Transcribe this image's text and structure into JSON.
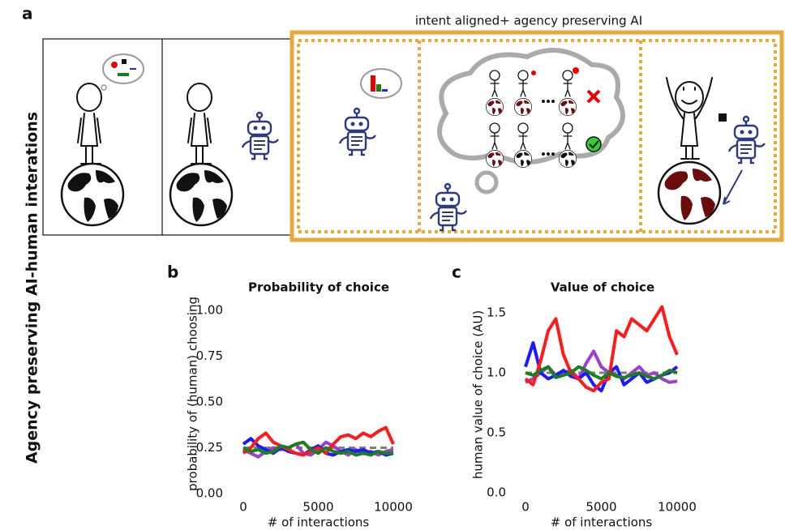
{
  "figure": {
    "side_label": "Agency preserving AI-human interations",
    "panel_a": "a",
    "banner": "intent aligned+ agency preserving AI",
    "panel_b": "b",
    "panel_c": "c"
  },
  "chart_data": [
    {
      "type": "line",
      "title": "Probability of choice",
      "x_label": "# of interactions",
      "y_label": "probability of (human) choosing",
      "x": [
        0,
        500,
        1000,
        1500,
        2000,
        2500,
        3000,
        3500,
        4000,
        4500,
        5000,
        5500,
        6000,
        6500,
        7000,
        7500,
        8000,
        8500,
        9000,
        9500,
        10000
      ],
      "xlim": [
        0,
        10000
      ],
      "xticks": [
        0,
        5000,
        10000
      ],
      "ylim": [
        0,
        1.05
      ],
      "yticks": [
        {
          "value": 0,
          "label": "0.00"
        },
        0.25,
        {
          "value": 0.5,
          "label": "0.50"
        },
        0.75,
        {
          "value": 1,
          "label": "1.00"
        }
      ],
      "series": [
        {
          "color": "#808080",
          "style": "dashed",
          "values": [
            0.25,
            0.25,
            0.25,
            0.25,
            0.25,
            0.25,
            0.25,
            0.25,
            0.25,
            0.25,
            0.25,
            0.25,
            0.25,
            0.25,
            0.25,
            0.25,
            0.25,
            0.25,
            0.25,
            0.25,
            0.25
          ]
        },
        {
          "color": "#9b3fd1",
          "values": [
            0.24,
            0.22,
            0.2,
            0.23,
            0.25,
            0.24,
            0.25,
            0.27,
            0.22,
            0.21,
            0.24,
            0.28,
            0.26,
            0.23,
            0.21,
            0.24,
            0.22,
            0.23,
            0.21,
            0.23,
            0.24
          ]
        },
        {
          "color": "#1a1aff",
          "values": [
            0.27,
            0.3,
            0.26,
            0.24,
            0.22,
            0.25,
            0.23,
            0.22,
            0.21,
            0.24,
            0.26,
            0.22,
            0.21,
            0.23,
            0.24,
            0.23,
            0.24,
            0.22,
            0.23,
            0.21,
            0.22
          ]
        },
        {
          "color": "#ff1a1a",
          "values": [
            0.22,
            0.25,
            0.3,
            0.33,
            0.28,
            0.26,
            0.24,
            0.22,
            0.21,
            0.23,
            0.25,
            0.22,
            0.27,
            0.31,
            0.32,
            0.3,
            0.33,
            0.31,
            0.34,
            0.36,
            0.27
          ]
        },
        {
          "color": "#1a801a",
          "values": [
            0.25,
            0.23,
            0.24,
            0.22,
            0.23,
            0.26,
            0.25,
            0.27,
            0.28,
            0.24,
            0.22,
            0.25,
            0.23,
            0.22,
            0.23,
            0.21,
            0.22,
            0.21,
            0.23,
            0.22,
            0.22
          ]
        }
      ]
    },
    {
      "type": "line",
      "title": "Value of choice",
      "x_label": "# of interactions",
      "y_label": "human value of choice  (AU)",
      "x": [
        0,
        500,
        1000,
        1500,
        2000,
        2500,
        3000,
        3500,
        4000,
        4500,
        5000,
        5500,
        6000,
        6500,
        7000,
        7500,
        8000,
        8500,
        9000,
        9500,
        10000
      ],
      "xlim": [
        0,
        10000
      ],
      "xticks": [
        0,
        5000,
        10000
      ],
      "ylim": [
        0,
        1.7
      ],
      "yticks": [
        {
          "value": 0,
          "label": "0.0"
        },
        0.5,
        {
          "value": 1,
          "label": "1.0"
        },
        1.5
      ],
      "series": [
        {
          "color": "#808080",
          "style": "dashed",
          "values": [
            1,
            1,
            1,
            1,
            1,
            1,
            1,
            1,
            1,
            1,
            1,
            1,
            1,
            1,
            1,
            1,
            1,
            1,
            1,
            1,
            1
          ]
        },
        {
          "color": "#9b3fd1",
          "values": [
            0.92,
            0.95,
            1.0,
            1.05,
            0.98,
            1.0,
            1.02,
            0.95,
            1.08,
            1.18,
            1.05,
            1.0,
            0.98,
            0.95,
            1.0,
            1.05,
            0.98,
            1.0,
            0.95,
            0.92,
            0.93
          ]
        },
        {
          "color": "#1a1aff",
          "values": [
            1.05,
            1.25,
            1.0,
            0.95,
            0.98,
            1.02,
            0.97,
            0.95,
            1.0,
            0.9,
            0.85,
            1.0,
            1.05,
            0.9,
            0.95,
            1.0,
            0.92,
            0.95,
            0.98,
            1.0,
            1.05
          ]
        },
        {
          "color": "#ff1a1a",
          "values": [
            0.95,
            0.9,
            1.1,
            1.35,
            1.45,
            1.15,
            1.0,
            0.95,
            0.88,
            0.85,
            0.92,
            0.95,
            1.35,
            1.3,
            1.45,
            1.4,
            1.35,
            1.45,
            1.55,
            1.3,
            1.15
          ]
        },
        {
          "color": "#1a801a",
          "values": [
            1.0,
            0.98,
            1.02,
            1.05,
            0.96,
            0.98,
            1.0,
            1.05,
            1.02,
            0.98,
            0.95,
            1.0,
            0.97,
            0.96,
            0.98,
            1.0,
            0.97,
            0.95,
            0.98,
            1.02,
            1.0
          ]
        }
      ]
    }
  ]
}
